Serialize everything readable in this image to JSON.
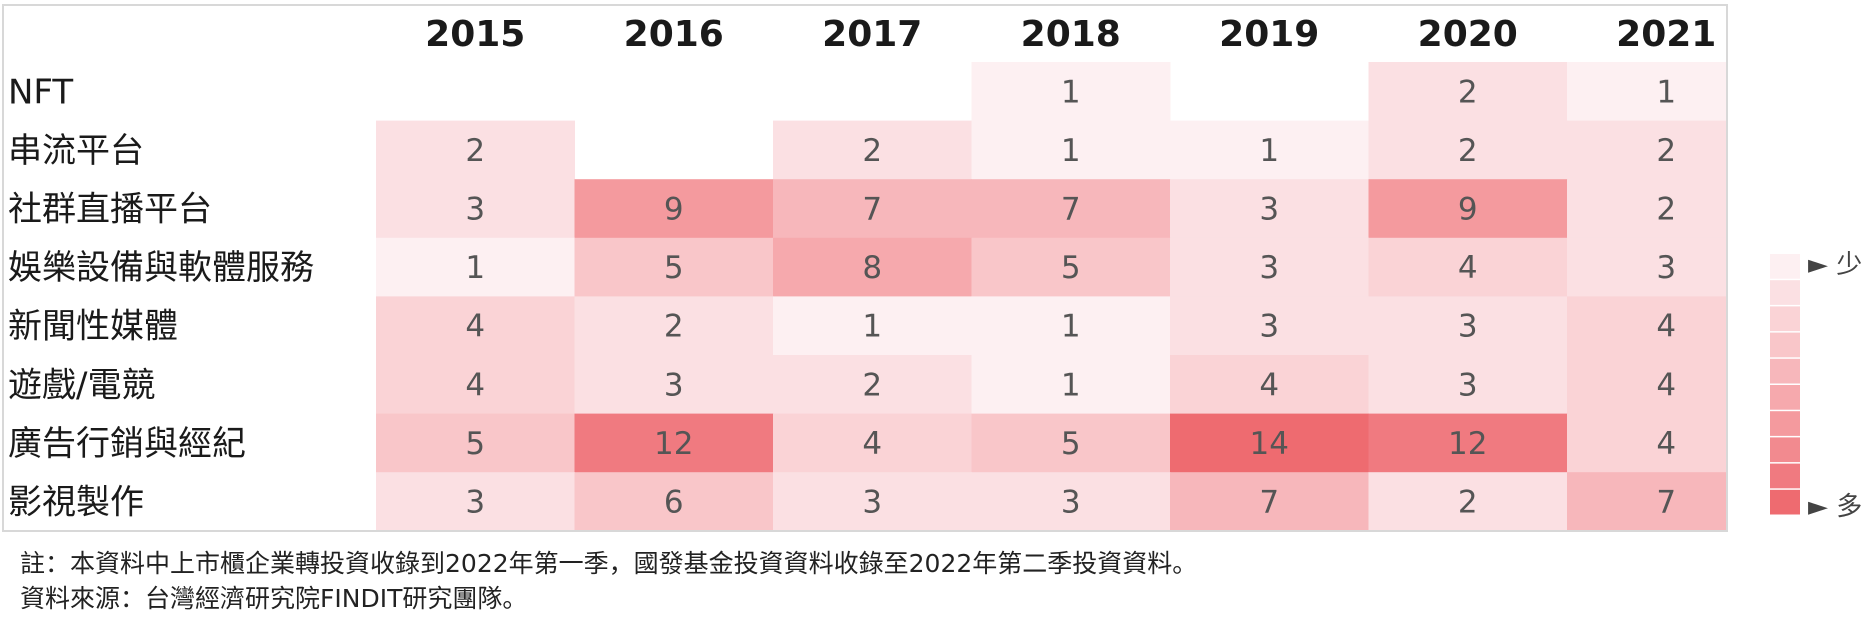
{
  "chart_data": {
    "type": "heatmap",
    "columns": [
      "2015",
      "2016",
      "2017",
      "2018",
      "2019",
      "2020",
      "2021"
    ],
    "rows": [
      "NFT",
      "串流平台",
      "社群直播平台",
      "娛樂設備與軟體服務",
      "新聞性媒體",
      "遊戲/電競",
      "廣告行銷與經紀",
      "影視製作"
    ],
    "values": [
      [
        null,
        null,
        null,
        1,
        null,
        2,
        1
      ],
      [
        2,
        null,
        2,
        1,
        1,
        2,
        2
      ],
      [
        3,
        9,
        7,
        7,
        3,
        9,
        2
      ],
      [
        1,
        5,
        8,
        5,
        3,
        4,
        3
      ],
      [
        4,
        2,
        1,
        1,
        3,
        3,
        4
      ],
      [
        4,
        3,
        2,
        1,
        4,
        3,
        4
      ],
      [
        5,
        12,
        4,
        5,
        14,
        12,
        4
      ],
      [
        3,
        6,
        3,
        3,
        7,
        2,
        7
      ]
    ],
    "color_scale": [
      "#fdf0f2",
      "#fbe0e3",
      "#fad3d6",
      "#f9c6c9",
      "#f7b7bb",
      "#f6a9ad",
      "#f49a9e",
      "#f28a8f",
      "#f07a80",
      "#ee6b70"
    ],
    "legend": {
      "low_label": "► 少",
      "high_label": "► 多"
    }
  },
  "notes": {
    "line1": "註：本資料中上市櫃企業轉投資收錄到2022年第一季，國發基金投資資料收錄至2022年第二季投資資料。",
    "line2": "資料來源：台灣經濟研究院FINDIT研究團隊。"
  }
}
